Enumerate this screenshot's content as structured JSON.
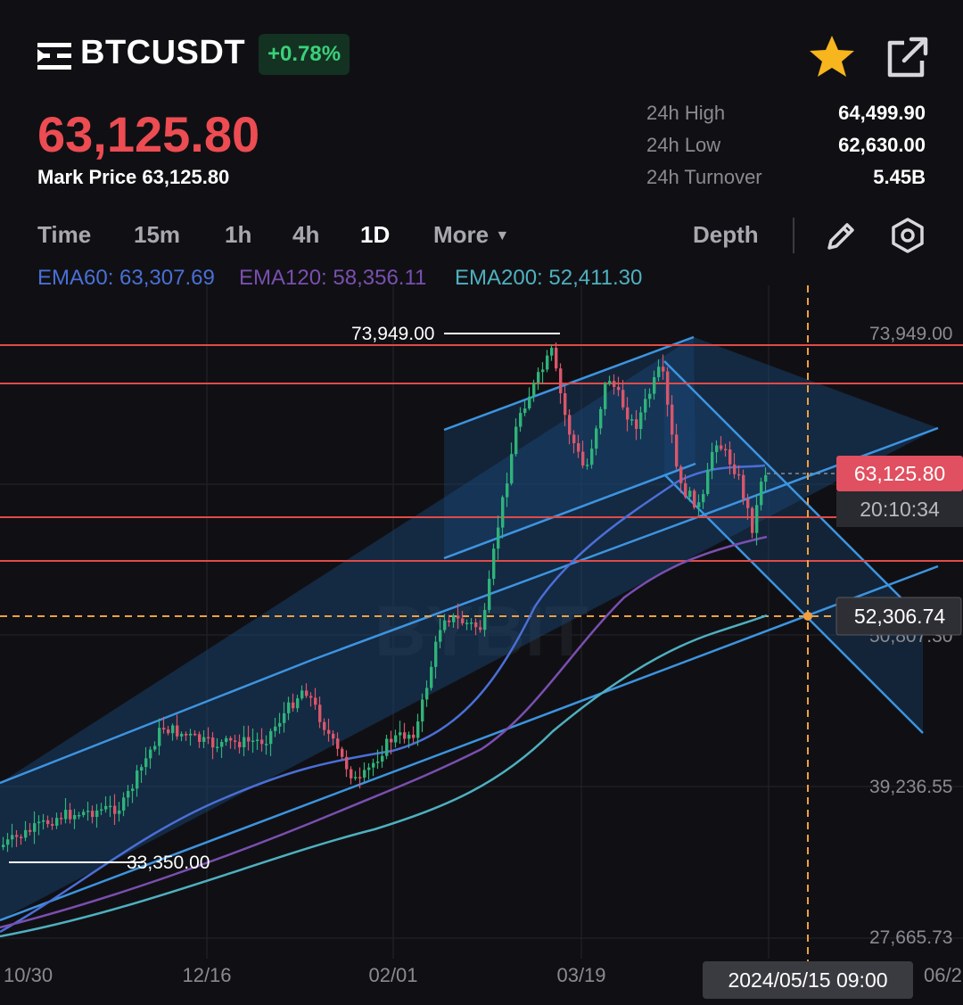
{
  "header": {
    "symbol": "BTCUSDT",
    "change_pct": "+0.78%",
    "last_price": "63,125.80",
    "mark_price_label": "Mark Price",
    "mark_price_value": "63,125.80",
    "icons": {
      "menu": "menu-icon",
      "favorite": "star-icon",
      "share": "share-icon"
    },
    "colors": {
      "up": "#3ad07a",
      "down": "#ec4c52",
      "favorite": "#f7b51e"
    }
  },
  "stats": [
    {
      "label": "24h High",
      "value": "64,499.90"
    },
    {
      "label": "24h Low",
      "value": "62,630.00"
    },
    {
      "label": "24h Turnover",
      "value": "5.45B"
    }
  ],
  "timeframes": [
    "Time",
    "15m",
    "1h",
    "4h",
    "1D",
    "More"
  ],
  "active_timeframe": "1D",
  "toolbar": {
    "depth_label": "Depth",
    "icons": [
      "pencil-icon",
      "settings-icon"
    ]
  },
  "emas": [
    {
      "label": "EMA60: 63,307.69",
      "color": "#4a6fd6"
    },
    {
      "label": "EMA120: 58,356.11",
      "color": "#7a4fb0"
    },
    {
      "label": "EMA200: 52,411.30",
      "color": "#4fb0c0"
    }
  ],
  "chart": {
    "y_axis_labels": [
      "73,949.00",
      "50,807.30",
      "39,236.55",
      "27,665.73"
    ],
    "x_axis_labels": [
      "10/30",
      "12/16",
      "02/01",
      "03/19",
      "06/2"
    ],
    "high_marker": "73,949.00",
    "low_marker": "33,350.00",
    "current_price_tag": "63,125.80",
    "countdown_tag": "20:10:34",
    "crosshair_price_tag": "52,306.74",
    "crosshair_time_tag": "2024/05/15 09:00",
    "watermark": "BYBIT"
  },
  "chart_data": {
    "type": "candlestick",
    "ylim": [
      27665.73,
      73949.0
    ],
    "y_ticks": [
      73949.0,
      50807.3,
      39236.55,
      27665.73
    ],
    "x_ticks": [
      "10/30",
      "12/16",
      "02/01",
      "03/19",
      "06/2"
    ],
    "series": [
      {
        "name": "EMA60",
        "last": 63307.69
      },
      {
        "name": "EMA120",
        "last": 58356.11
      },
      {
        "name": "EMA200",
        "last": 52411.3
      }
    ],
    "annotations": {
      "period_high": 73949.0,
      "period_low": 33350.0,
      "last_price": 63125.8,
      "crosshair_price": 52306.74,
      "crosshair_time": "2024/05/15 09:00"
    },
    "grid": true
  }
}
